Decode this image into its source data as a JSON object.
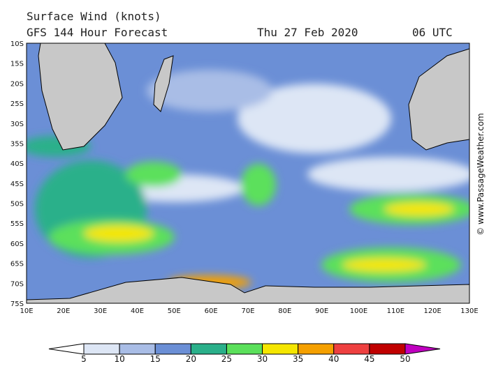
{
  "header": {
    "title": "Surface Wind (knots)",
    "forecast": "GFS 144 Hour Forecast",
    "date": "Thu 27 Feb 2020",
    "time": "06 UTC"
  },
  "map": {
    "lat_labels": [
      "10S",
      "15S",
      "20S",
      "25S",
      "30S",
      "35S",
      "40S",
      "45S",
      "50S",
      "55S",
      "60S",
      "65S",
      "70S",
      "75S"
    ],
    "lon_labels": [
      "10E",
      "20E",
      "30E",
      "40E",
      "50E",
      "60E",
      "70E",
      "80E",
      "90E",
      "100E",
      "110E",
      "120E",
      "130E"
    ]
  },
  "colorbar": {
    "ticks": [
      5,
      10,
      15,
      20,
      25,
      30,
      35,
      40,
      45,
      50
    ],
    "colors": [
      "#ffffff",
      "#dde6f5",
      "#a9bde6",
      "#6b8fd6",
      "#2ab08a",
      "#5be05b",
      "#f5e600",
      "#f5a000",
      "#ee4040",
      "#c00000",
      "#c000c0"
    ]
  },
  "credit": "© www.PassageWeather.com"
}
